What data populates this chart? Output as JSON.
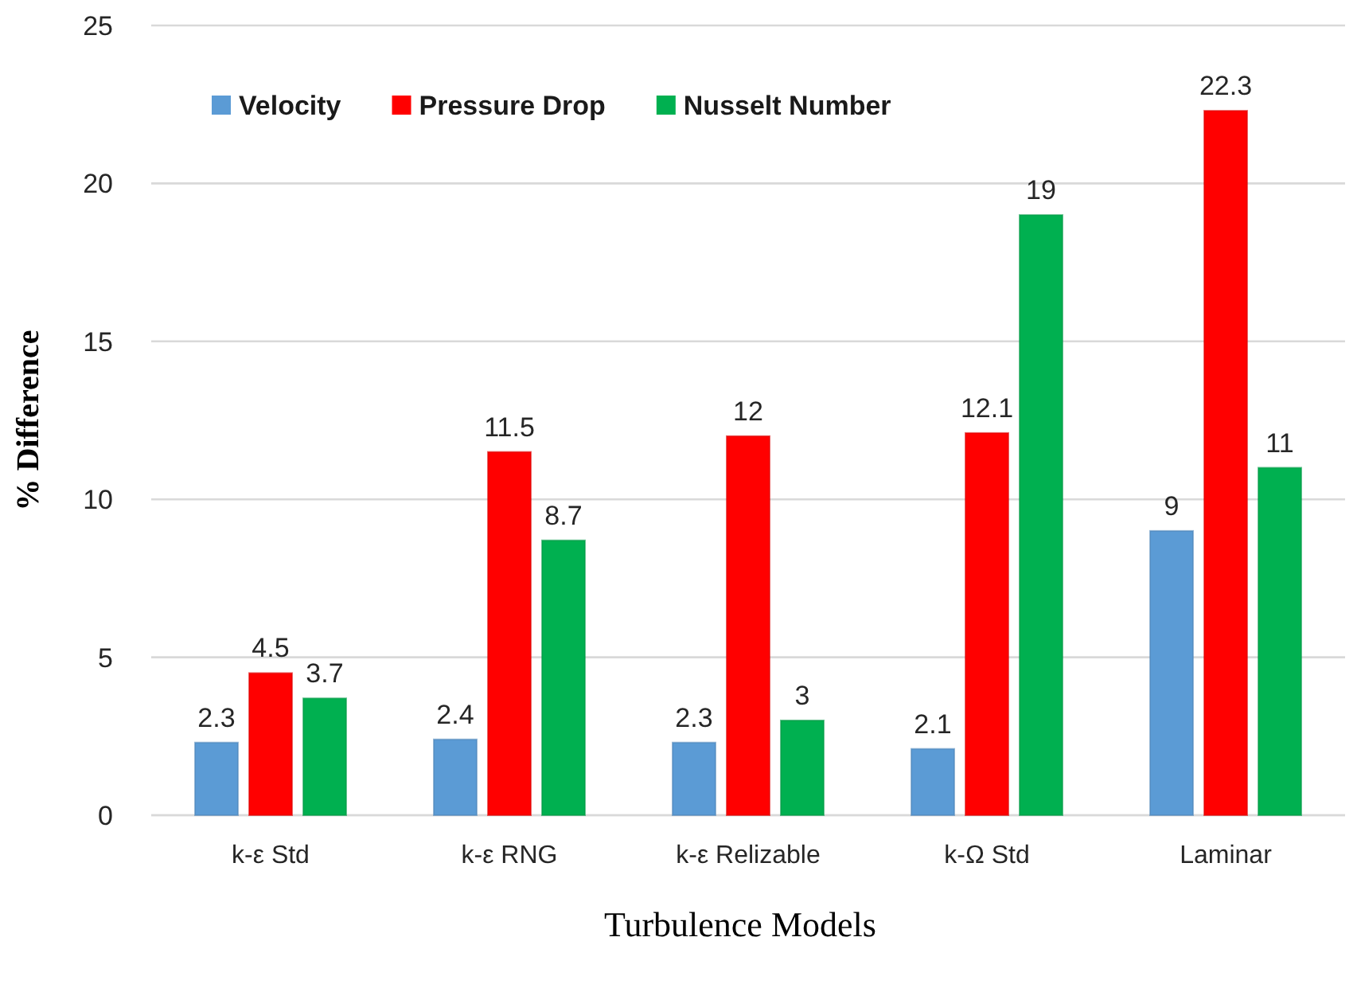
{
  "chart_data": {
    "type": "bar",
    "xlabel": "Turbulence Models",
    "ylabel": "% Difference",
    "categories": [
      "k-ε Std",
      "k-ε RNG",
      "k-ε Relizable",
      "k-Ω Std",
      "Laminar"
    ],
    "series": [
      {
        "name": "Velocity",
        "color": "#5b9bd5",
        "values": [
          2.3,
          2.4,
          2.3,
          2.1,
          9
        ]
      },
      {
        "name": "Pressure Drop",
        "color": "#ff0000",
        "values": [
          4.5,
          11.5,
          12,
          12.1,
          22.3
        ]
      },
      {
        "name": "Nusselt Number",
        "color": "#00b050",
        "values": [
          3.7,
          8.7,
          3,
          19,
          11
        ]
      }
    ],
    "ylim": [
      0,
      25
    ],
    "yticks": [
      0,
      5,
      10,
      15,
      20,
      25
    ],
    "grid": "y",
    "data_labels": true,
    "legend": "top left"
  }
}
